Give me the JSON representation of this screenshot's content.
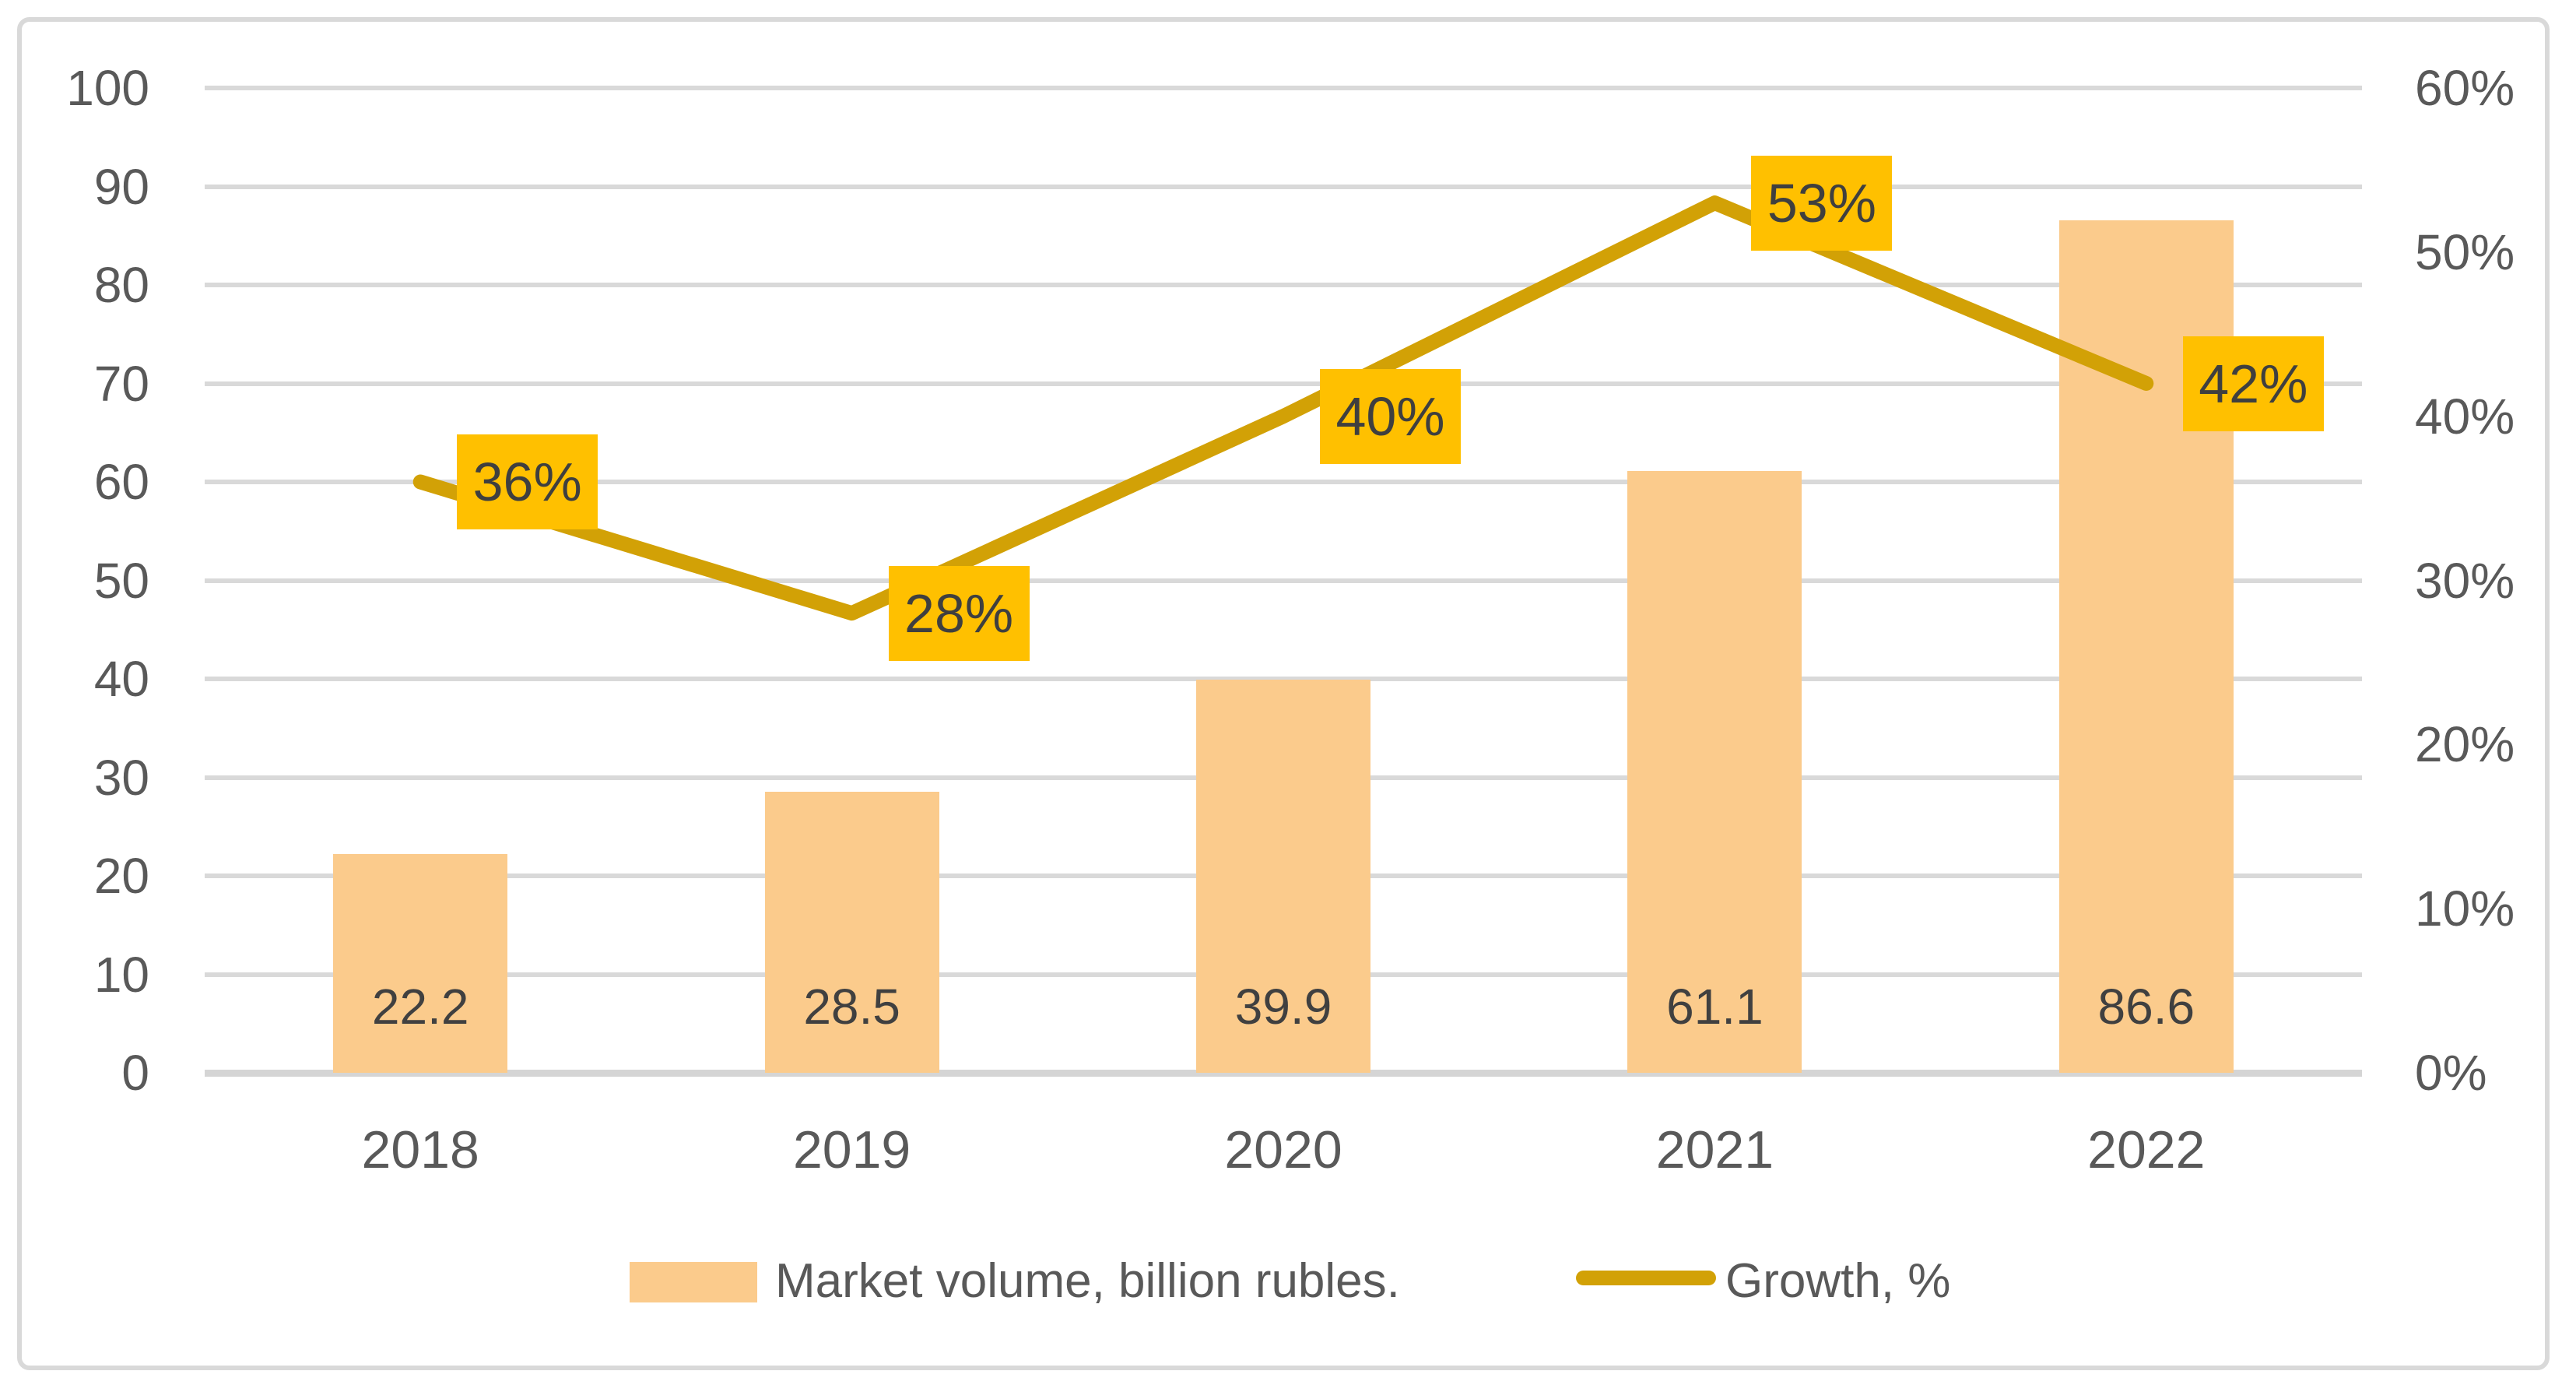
{
  "figure": {
    "background": "#FFFFFF",
    "border_color": "#D9D9D9",
    "gridline_color": "#D9D9D9",
    "axis_text_color": "#595959",
    "value_text_color": "#404040"
  },
  "chart_data": {
    "type": "combo",
    "categories": [
      "2018",
      "2019",
      "2020",
      "2021",
      "2022"
    ],
    "series": [
      {
        "name": "Market volume, billion rubles.",
        "type": "bar",
        "axis": "left",
        "values": [
          22.2,
          28.5,
          39.9,
          61.1,
          86.6
        ],
        "labels": [
          "22.2",
          "28.5",
          "39.9",
          "61.1",
          "86.6"
        ],
        "color": "#FBCB8C"
      },
      {
        "name": "Growth, %",
        "type": "line",
        "axis": "right",
        "values": [
          36,
          28,
          40,
          53,
          42
        ],
        "labels": [
          "36%",
          "28%",
          "40%",
          "53%",
          "42%"
        ],
        "color": "#D2A106",
        "label_bg": "#FFC000",
        "label_text_color": "#3F3F3F"
      }
    ],
    "left_axis": {
      "min": 0,
      "max": 100,
      "step": 10,
      "ticks": [
        "100",
        "90",
        "80",
        "70",
        "60",
        "50",
        "40",
        "30",
        "20",
        "10",
        "0"
      ]
    },
    "right_axis": {
      "min": 0,
      "max": 60,
      "step": 10,
      "ticks": [
        "60%",
        "50%",
        "40%",
        "30%",
        "20%",
        "10%",
        "0%"
      ]
    },
    "grid": true,
    "legend_position": "bottom"
  },
  "legend": {
    "bar_label": "Market volume, billion rubles.",
    "line_label": "Growth, %"
  }
}
